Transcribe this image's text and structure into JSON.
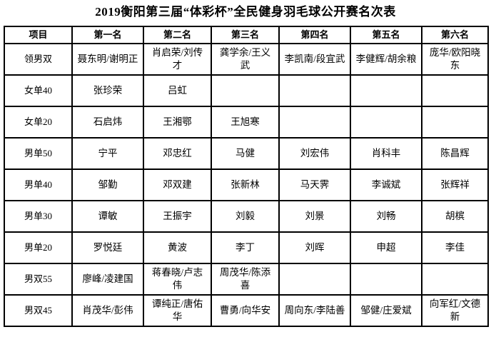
{
  "title": "2019衡阳第三届“体彩杯”全民健身羽毛球公开赛名次表",
  "colors": {
    "background": "#ffffff",
    "border": "#000000",
    "text": "#000000"
  },
  "table": {
    "headers": [
      "项目",
      "第一名",
      "第二名",
      "第三名",
      "第四名",
      "第五名",
      "第六名"
    ],
    "rows": [
      {
        "event": "领男双",
        "results": [
          "聂东明/谢明正",
          "肖启荣/刘传才",
          "龚学余/王义武",
          "李凯南/段宜武",
          "李健辉/胡余粮",
          "庞华/欧阳晓东"
        ]
      },
      {
        "event": "女单40",
        "results": [
          "张珍荣",
          "吕虹",
          "",
          "",
          "",
          ""
        ]
      },
      {
        "event": "女单20",
        "results": [
          "石启炜",
          "王湘鄂",
          "王旭寒",
          "",
          "",
          ""
        ]
      },
      {
        "event": "男单50",
        "results": [
          "宁平",
          "邓忠红",
          "马健",
          "刘宏伟",
          "肖科丰",
          "陈昌辉"
        ]
      },
      {
        "event": "男单40",
        "results": [
          "邹勤",
          "邓双建",
          "张新林",
          "马天霁",
          "李诚斌",
          "张辉祥"
        ]
      },
      {
        "event": "男单30",
        "results": [
          "谭敏",
          "王振宇",
          "刘毅",
          "刘景",
          "刘畅",
          "胡槟"
        ]
      },
      {
        "event": "男单20",
        "results": [
          "罗悦廷",
          "黄波",
          "李丁",
          "刘晖",
          "申超",
          "李佳"
        ]
      },
      {
        "event": "男双55",
        "results": [
          "廖峰/凌建国",
          "蒋春晓/卢志伟",
          "周茂华/陈添喜",
          "",
          "",
          ""
        ]
      },
      {
        "event": "男双45",
        "results": [
          "肖茂华/彭伟",
          "谭纯正/唐佑华",
          "曹勇/向华安",
          "周向东/李陆善",
          "邹健/庄爱斌",
          "向军红/文德新"
        ]
      }
    ]
  }
}
